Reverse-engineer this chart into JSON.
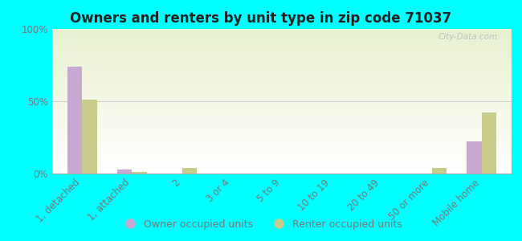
{
  "title": "Owners and renters by unit type in zip code 71037",
  "categories": [
    "1, detached",
    "1, attached",
    "2",
    "3 or 4",
    "5 to 9",
    "10 to 19",
    "20 to 49",
    "50 or more",
    "Mobile home"
  ],
  "owner_values": [
    74,
    3,
    0,
    0,
    0,
    0,
    0,
    0,
    22
  ],
  "renter_values": [
    51,
    1,
    4,
    0,
    0,
    0,
    0,
    4,
    42
  ],
  "owner_color": "#c9a8d4",
  "renter_color": "#c8cc8a",
  "ylim": [
    0,
    100
  ],
  "yticks": [
    0,
    50,
    100
  ],
  "ytick_labels": [
    "0%",
    "50%",
    "100%"
  ],
  "bg_color": "#00ffff",
  "plot_bg_top": "#e8f0d0",
  "plot_bg_bottom": "#ffffff",
  "watermark": "City-Data.com",
  "bar_width": 0.3,
  "legend_owner": "Owner occupied units",
  "legend_renter": "Renter occupied units",
  "title_color": "#222222",
  "tick_color": "#777777",
  "grid_color": "#cccccc",
  "title_fontsize": 12,
  "tick_fontsize": 8.5,
  "legend_fontsize": 9
}
